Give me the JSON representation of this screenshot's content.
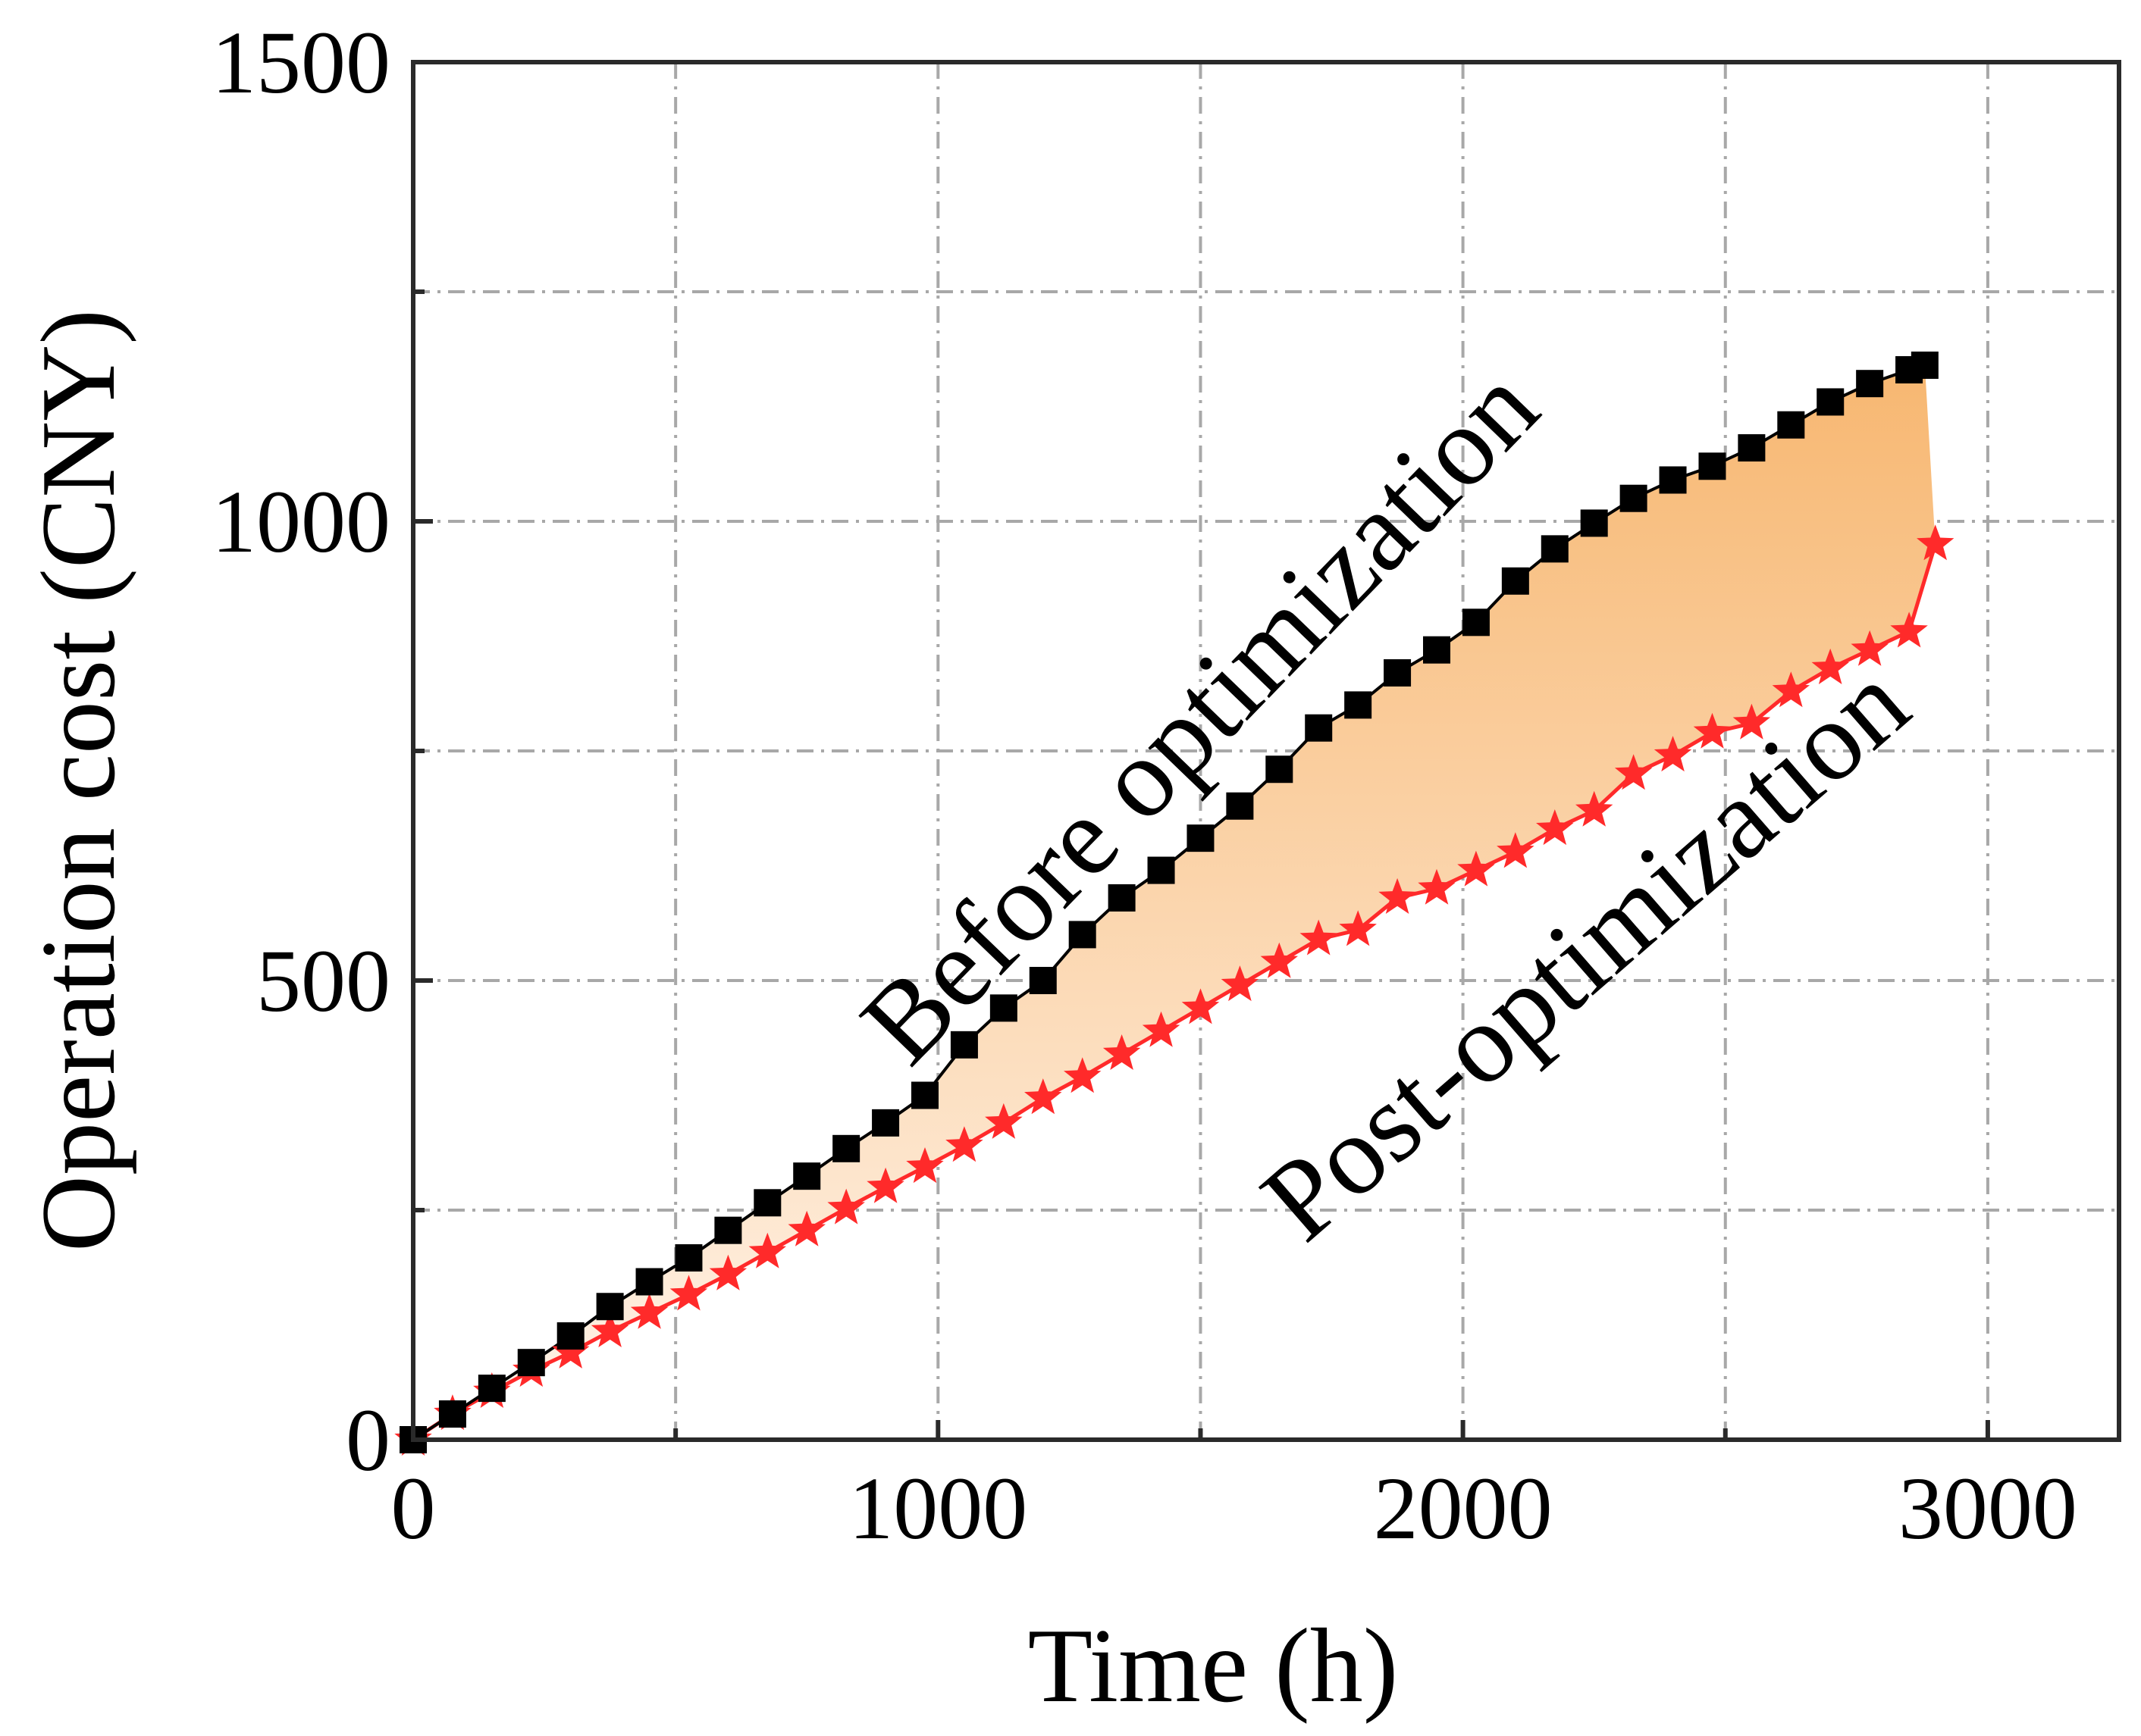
{
  "chart_data": {
    "type": "scatter",
    "title": "",
    "xlabel": "Time (h)",
    "ylabel": "Operation cost (CNY)",
    "xlim": [
      0,
      3250
    ],
    "ylim": [
      0,
      1500
    ],
    "x_ticks": [
      0,
      1000,
      2000,
      3000
    ],
    "y_ticks": [
      0,
      500,
      1000,
      1500
    ],
    "x_tick_labels": [
      "0",
      "1000",
      "2000",
      "3000"
    ],
    "y_tick_labels": [
      "0",
      "500",
      "1000",
      "1500"
    ],
    "grid": true,
    "fill_between_series": true,
    "colors": {
      "before": "#000000",
      "post": "#ff2a2a",
      "fill_top": "#f7b771",
      "fill_bottom": "#fff4ea",
      "grid": "#a8a8a8"
    },
    "series": [
      {
        "name": "Before optimization",
        "marker": "square",
        "x": [
          0,
          75,
          150,
          225,
          300,
          375,
          450,
          525,
          600,
          675,
          750,
          825,
          900,
          975,
          1050,
          1125,
          1200,
          1275,
          1350,
          1425,
          1500,
          1575,
          1650,
          1725,
          1800,
          1875,
          1950,
          2025,
          2100,
          2175,
          2250,
          2325,
          2400,
          2475,
          2550,
          2625,
          2700,
          2775,
          2850,
          2880
        ],
        "values": [
          0,
          28,
          56,
          84,
          113,
          145,
          172,
          198,
          228,
          258,
          287,
          317,
          345,
          375,
          430,
          470,
          500,
          550,
          590,
          620,
          655,
          690,
          730,
          775,
          800,
          835,
          860,
          890,
          935,
          970,
          998,
          1025,
          1045,
          1060,
          1080,
          1105,
          1130,
          1150,
          1165,
          1170
        ]
      },
      {
        "name": "Post-optimization",
        "marker": "star",
        "x": [
          0,
          75,
          150,
          225,
          300,
          375,
          450,
          525,
          600,
          675,
          750,
          825,
          900,
          975,
          1050,
          1125,
          1200,
          1275,
          1350,
          1425,
          1500,
          1575,
          1650,
          1725,
          1800,
          1875,
          1950,
          2025,
          2100,
          2175,
          2250,
          2325,
          2400,
          2475,
          2550,
          2625,
          2700,
          2775,
          2850,
          2900
        ],
        "values": [
          0,
          28,
          52,
          75,
          95,
          118,
          138,
          158,
          180,
          204,
          228,
          252,
          275,
          297,
          320,
          345,
          372,
          395,
          420,
          445,
          470,
          495,
          520,
          545,
          555,
          590,
          600,
          620,
          640,
          665,
          685,
          725,
          745,
          770,
          780,
          815,
          840,
          860,
          880,
          975
        ]
      }
    ],
    "annotations": [
      {
        "text": "Before optimization",
        "at_x": 1550,
        "at_y": 760,
        "rotation_deg": -46
      },
      {
        "text": "Post-optimization",
        "at_x": 2280,
        "at_y": 500,
        "rotation_deg": -41
      }
    ]
  }
}
